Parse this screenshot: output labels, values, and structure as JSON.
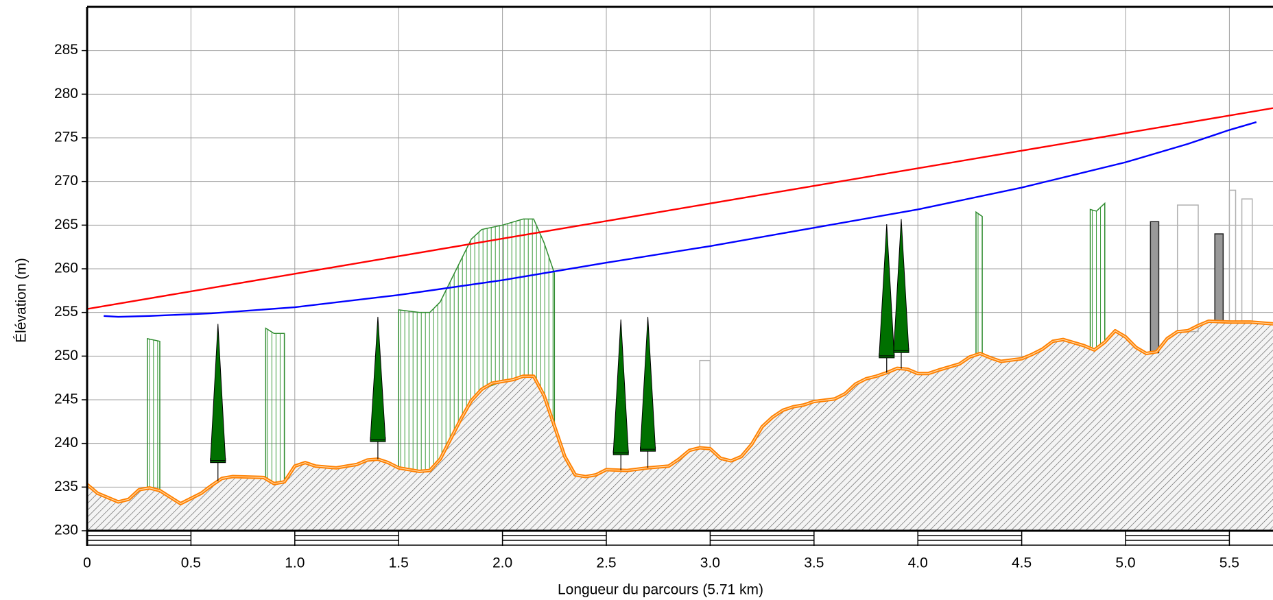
{
  "chart_data": {
    "type": "line",
    "xlabel": "Longueur du parcours (5.71 km)",
    "ylabel": "Élévation (m)",
    "xlim": [
      0,
      5.71
    ],
    "ylim": [
      230,
      290
    ],
    "xticks": [
      0,
      {
        "value": 0.5,
        "label": "0.5"
      },
      {
        "value": 1.0,
        "label": "1.0"
      },
      {
        "value": 1.5,
        "label": "1.5"
      },
      {
        "value": 2.0,
        "label": "2.0"
      },
      {
        "value": 2.5,
        "label": "2.5"
      },
      {
        "value": 3.0,
        "label": "3.0"
      },
      {
        "value": 3.5,
        "label": "3.5"
      },
      {
        "value": 4.0,
        "label": "4.0"
      },
      {
        "value": 4.5,
        "label": "4.5"
      },
      {
        "value": 5.0,
        "label": "5.0"
      },
      {
        "value": 5.5,
        "label": "5.5"
      }
    ],
    "yticks": [
      230,
      235,
      240,
      245,
      250,
      255,
      260,
      265,
      270,
      275,
      280,
      285
    ],
    "grid": true,
    "terrain": {
      "color": "#ff8000",
      "x": [
        0,
        0.05,
        0.15,
        0.2,
        0.25,
        0.3,
        0.35,
        0.45,
        0.55,
        0.6,
        0.65,
        0.7,
        0.85,
        0.9,
        0.95,
        1.0,
        1.05,
        1.1,
        1.2,
        1.3,
        1.35,
        1.4,
        1.45,
        1.5,
        1.6,
        1.65,
        1.7,
        1.75,
        1.8,
        1.85,
        1.9,
        1.95,
        2.0,
        2.05,
        2.1,
        2.15,
        2.2,
        2.25,
        2.3,
        2.35,
        2.4,
        2.45,
        2.5,
        2.6,
        2.7,
        2.8,
        2.85,
        2.9,
        2.95,
        3.0,
        3.05,
        3.1,
        3.15,
        3.2,
        3.25,
        3.3,
        3.35,
        3.4,
        3.45,
        3.5,
        3.6,
        3.65,
        3.7,
        3.75,
        3.8,
        3.85,
        3.9,
        3.95,
        4.0,
        4.05,
        4.1,
        4.2,
        4.25,
        4.3,
        4.35,
        4.4,
        4.5,
        4.55,
        4.6,
        4.65,
        4.7,
        4.8,
        4.85,
        4.9,
        4.95,
        5.0,
        5.05,
        5.1,
        5.15,
        5.2,
        5.25,
        5.3,
        5.35,
        5.4,
        5.5,
        5.6,
        5.71
      ],
      "values": [
        235.3,
        234.3,
        233.3,
        233.6,
        234.7,
        234.9,
        234.6,
        233.1,
        234.3,
        235.2,
        236.0,
        236.2,
        236.1,
        235.4,
        235.6,
        237.4,
        237.8,
        237.4,
        237.2,
        237.6,
        238.1,
        238.2,
        237.8,
        237.2,
        236.8,
        236.9,
        238.2,
        240.5,
        242.8,
        244.9,
        246.2,
        246.9,
        247.1,
        247.3,
        247.7,
        247.7,
        245.5,
        242.0,
        238.5,
        236.4,
        236.2,
        236.4,
        237.0,
        236.9,
        237.2,
        237.4,
        238.2,
        239.2,
        239.5,
        239.4,
        238.3,
        238.0,
        238.5,
        239.9,
        241.9,
        243.0,
        243.8,
        244.2,
        244.4,
        244.8,
        245.1,
        245.7,
        246.8,
        247.4,
        247.7,
        248.1,
        248.6,
        248.5,
        248.0,
        248.0,
        248.4,
        249.1,
        249.9,
        250.3,
        249.8,
        249.4,
        249.7,
        250.2,
        250.8,
        251.7,
        251.9,
        251.2,
        250.7,
        251.6,
        252.9,
        252.2,
        251.0,
        250.3,
        250.5,
        252.0,
        252.8,
        252.9,
        253.5,
        254.0,
        253.9,
        253.9,
        253.7
      ]
    },
    "line_of_sight": {
      "color": "#ff0000",
      "x": [
        0,
        5.71
      ],
      "values": [
        255.4,
        278.4
      ]
    },
    "fresnel": {
      "color": "#0000ff",
      "x": [
        0.08,
        0.15,
        0.3,
        0.6,
        1.0,
        1.5,
        2.0,
        2.5,
        3.0,
        3.5,
        4.0,
        4.5,
        5.0,
        5.3,
        5.5,
        5.63
      ],
      "values": [
        254.6,
        254.5,
        254.6,
        254.9,
        255.6,
        257.0,
        258.7,
        260.7,
        262.6,
        264.7,
        266.8,
        269.3,
        272.2,
        274.3,
        275.9,
        276.8
      ]
    },
    "trees": [
      {
        "x": 0.63,
        "base": 237.8,
        "top": 253.7
      },
      {
        "x": 1.4,
        "base": 240.2,
        "top": 254.5
      },
      {
        "x": 2.57,
        "base": 238.7,
        "top": 254.2
      },
      {
        "x": 2.7,
        "base": 239.1,
        "top": 254.5
      },
      {
        "x": 3.85,
        "base": 249.8,
        "top": 265.1
      },
      {
        "x": 3.92,
        "base": 250.4,
        "top": 265.7
      }
    ],
    "vegetation": [
      {
        "x": [
          0.29,
          0.35
        ],
        "top": [
          252.0,
          251.7
        ]
      },
      {
        "x": [
          0.86,
          0.9,
          0.95
        ],
        "top": [
          253.2,
          252.6,
          252.6
        ]
      },
      {
        "x": [
          1.5,
          1.6,
          1.65,
          1.7,
          1.8,
          1.85,
          1.9,
          2.0,
          2.1,
          2.15,
          2.2,
          2.25
        ],
        "top": [
          255.3,
          255.0,
          255.0,
          256.2,
          261.0,
          263.4,
          264.5,
          265.0,
          265.7,
          265.7,
          263.0,
          259.5
        ]
      },
      {
        "x": [
          4.28,
          4.31
        ],
        "top": [
          266.5,
          266.0
        ]
      },
      {
        "x": [
          4.83,
          4.86,
          4.9
        ],
        "top": [
          266.8,
          266.6,
          267.5
        ]
      }
    ],
    "buildings": [
      {
        "x": [
          5.12,
          5.16
        ],
        "top": 265.4,
        "color": "#999999"
      },
      {
        "x": [
          5.43,
          5.47
        ],
        "top": 264.0,
        "color": "#999999"
      },
      {
        "x": [
          2.95,
          3.0
        ],
        "top": 249.5,
        "color": "none"
      },
      {
        "x": [
          5.25,
          5.35
        ],
        "top": 267.3,
        "color": "none"
      },
      {
        "x": [
          5.5,
          5.53
        ],
        "top": 269.0,
        "color": "none"
      },
      {
        "x": [
          5.56,
          5.61
        ],
        "top": 268.0,
        "color": "none"
      }
    ]
  }
}
